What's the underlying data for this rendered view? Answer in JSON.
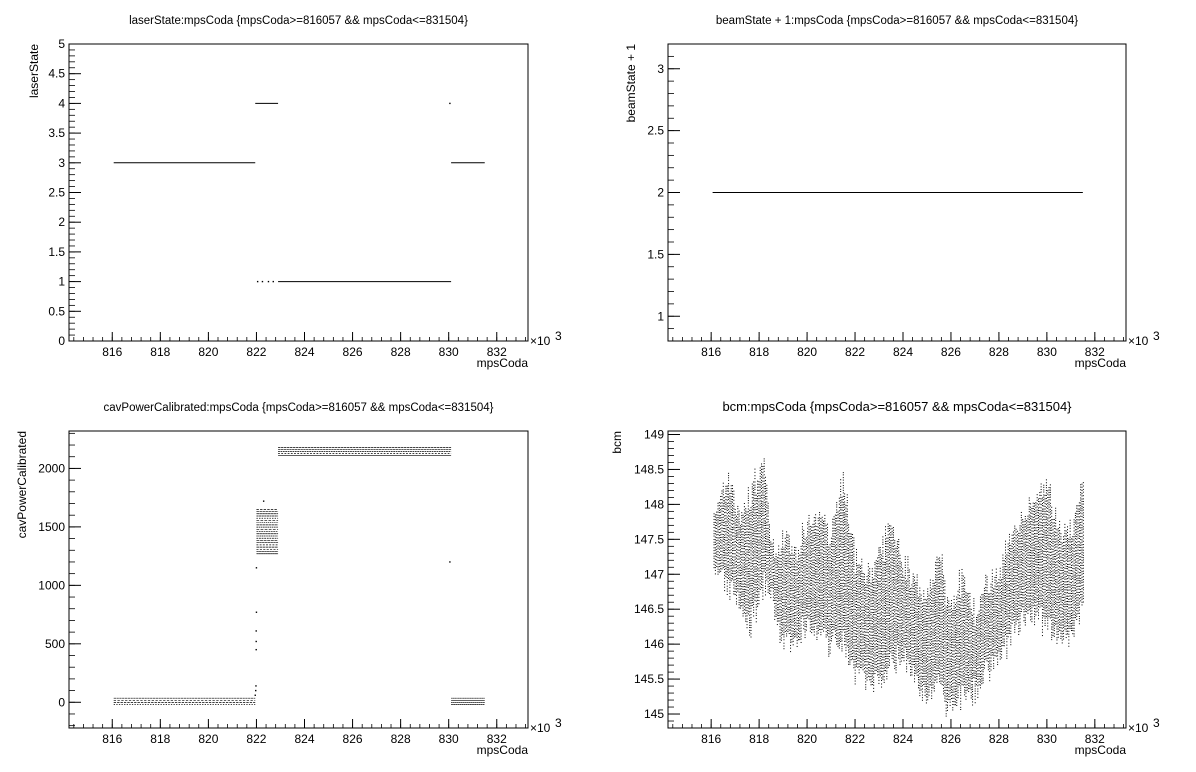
{
  "chart_data": [
    {
      "type": "scatter",
      "title": "laserState:mpsCoda {mpsCoda>=816057 && mpsCoda<=831504}",
      "xlabel": "mpsCoda",
      "ylabel": "laserState",
      "x_multiplier": "×10",
      "x_multiplier_exp": "3",
      "xlim": [
        814.2,
        833.3
      ],
      "ylim": [
        0,
        5
      ],
      "x_ticks": [
        816,
        818,
        820,
        822,
        824,
        826,
        828,
        830,
        832
      ],
      "x_tick_labels": [
        "816",
        "818",
        "820",
        "822",
        "824",
        "826",
        "828",
        "830",
        "832"
      ],
      "y_ticks": [
        0,
        0.5,
        1,
        1.5,
        2,
        2.5,
        3,
        3.5,
        4,
        4.5,
        5
      ],
      "y_tick_labels": [
        "0",
        "0.5",
        "1",
        "1.5",
        "2",
        "2.5",
        "3",
        "3.5",
        "4",
        "4.5",
        "5"
      ],
      "segments": [
        {
          "x0": 816.06,
          "x1": 821.95,
          "y": 3
        },
        {
          "x0": 821.95,
          "x1": 822.9,
          "y": 4
        },
        {
          "x0": 822.9,
          "x1": 830.1,
          "y": 1
        },
        {
          "x0": 830.1,
          "x1": 831.5,
          "y": 3
        }
      ],
      "points": [
        {
          "x": 822.05,
          "y": 1
        },
        {
          "x": 822.25,
          "y": 1
        },
        {
          "x": 822.5,
          "y": 1
        },
        {
          "x": 822.7,
          "y": 1
        },
        {
          "x": 830.05,
          "y": 4
        }
      ]
    },
    {
      "type": "scatter",
      "title": "beamState + 1:mpsCoda {mpsCoda>=816057 && mpsCoda<=831504}",
      "xlabel": "mpsCoda",
      "ylabel": "beamState + 1",
      "x_multiplier": "×10",
      "x_multiplier_exp": "3",
      "xlim": [
        814.2,
        833.3
      ],
      "ylim": [
        0.8,
        3.2
      ],
      "x_ticks": [
        816,
        818,
        820,
        822,
        824,
        826,
        828,
        830,
        832
      ],
      "x_tick_labels": [
        "816",
        "818",
        "820",
        "822",
        "824",
        "826",
        "828",
        "830",
        "832"
      ],
      "y_ticks": [
        1,
        1.5,
        2,
        2.5,
        3
      ],
      "y_tick_labels": [
        "1",
        "1.5",
        "2",
        "2.5",
        "3"
      ],
      "segments": [
        {
          "x0": 816.06,
          "x1": 831.5,
          "y": 2
        }
      ],
      "points": []
    },
    {
      "type": "scatter",
      "title": "cavPowerCalibrated:mpsCoda {mpsCoda>=816057 && mpsCoda<=831504}",
      "xlabel": "mpsCoda",
      "ylabel": "cavPowerCalibrated",
      "x_multiplier": "×10",
      "x_multiplier_exp": "3",
      "xlim": [
        814.2,
        833.3
      ],
      "ylim": [
        -220,
        2320
      ],
      "x_ticks": [
        816,
        818,
        820,
        822,
        824,
        826,
        828,
        830,
        832
      ],
      "x_tick_labels": [
        "816",
        "818",
        "820",
        "822",
        "824",
        "826",
        "828",
        "830",
        "832"
      ],
      "y_ticks": [
        0,
        500,
        1000,
        1500,
        2000
      ],
      "y_tick_labels": [
        "0",
        "500",
        "1000",
        "1500",
        "2000"
      ],
      "bands": [
        {
          "x0": 816.06,
          "x1": 821.95,
          "ymin": -20,
          "ymax": 35
        },
        {
          "x0": 822.0,
          "x1": 822.9,
          "ymin": 1270,
          "ymax": 1650
        },
        {
          "x0": 822.9,
          "x1": 830.1,
          "ymin": 2110,
          "ymax": 2180
        },
        {
          "x0": 830.1,
          "x1": 831.5,
          "ymin": -20,
          "ymax": 35
        }
      ],
      "points": [
        {
          "x": 821.95,
          "y": 60
        },
        {
          "x": 821.97,
          "y": 100
        },
        {
          "x": 821.98,
          "y": 140
        },
        {
          "x": 821.99,
          "y": 450
        },
        {
          "x": 821.99,
          "y": 520
        },
        {
          "x": 821.99,
          "y": 610
        },
        {
          "x": 822.0,
          "y": 770
        },
        {
          "x": 822.0,
          "y": 1150
        },
        {
          "x": 822.3,
          "y": 1720
        },
        {
          "x": 830.05,
          "y": 1200
        }
      ]
    },
    {
      "type": "scatter",
      "title": "bcm:mpsCoda {mpsCoda>=816057 && mpsCoda<=831504}",
      "xlabel": "mpsCoda",
      "ylabel": "bcm",
      "x_multiplier": "×10",
      "x_multiplier_exp": "3",
      "xlim": [
        814.2,
        833.3
      ],
      "ylim": [
        144.8,
        149.05
      ],
      "x_ticks": [
        816,
        818,
        820,
        822,
        824,
        826,
        828,
        830,
        832
      ],
      "x_tick_labels": [
        "816",
        "818",
        "820",
        "822",
        "824",
        "826",
        "828",
        "830",
        "832"
      ],
      "y_ticks": [
        145,
        145.5,
        146,
        146.5,
        147,
        147.5,
        148,
        148.5,
        149
      ],
      "y_tick_labels": [
        "145",
        "145.5",
        "146",
        "146.5",
        "147",
        "147.5",
        "148",
        "148.5",
        "149"
      ],
      "trend": [
        {
          "x": 816.1,
          "lo": 146.9,
          "hi": 147.9
        },
        {
          "x": 816.7,
          "lo": 146.8,
          "hi": 148.5
        },
        {
          "x": 817.2,
          "lo": 146.5,
          "hi": 148.0
        },
        {
          "x": 817.6,
          "lo": 146.1,
          "hi": 148.2
        },
        {
          "x": 818.2,
          "lo": 146.8,
          "hi": 148.75
        },
        {
          "x": 818.5,
          "lo": 146.6,
          "hi": 147.4
        },
        {
          "x": 819.0,
          "lo": 146.0,
          "hi": 147.6
        },
        {
          "x": 819.5,
          "lo": 145.9,
          "hi": 147.4
        },
        {
          "x": 820.0,
          "lo": 146.2,
          "hi": 147.8
        },
        {
          "x": 820.5,
          "lo": 146.1,
          "hi": 148.0
        },
        {
          "x": 821.0,
          "lo": 145.9,
          "hi": 147.6
        },
        {
          "x": 821.5,
          "lo": 146.0,
          "hi": 148.6
        },
        {
          "x": 822.0,
          "lo": 145.5,
          "hi": 147.3
        },
        {
          "x": 822.5,
          "lo": 145.4,
          "hi": 147.0
        },
        {
          "x": 823.0,
          "lo": 145.3,
          "hi": 147.4
        },
        {
          "x": 823.5,
          "lo": 145.6,
          "hi": 147.8
        },
        {
          "x": 824.0,
          "lo": 145.8,
          "hi": 147.3
        },
        {
          "x": 824.5,
          "lo": 145.4,
          "hi": 147.0
        },
        {
          "x": 825.0,
          "lo": 145.2,
          "hi": 146.8
        },
        {
          "x": 825.5,
          "lo": 145.3,
          "hi": 147.3
        },
        {
          "x": 826.0,
          "lo": 145.0,
          "hi": 146.6
        },
        {
          "x": 826.5,
          "lo": 145.2,
          "hi": 147.1
        },
        {
          "x": 827.0,
          "lo": 145.2,
          "hi": 146.5
        },
        {
          "x": 827.5,
          "lo": 145.6,
          "hi": 147.0
        },
        {
          "x": 828.0,
          "lo": 145.8,
          "hi": 147.2
        },
        {
          "x": 828.5,
          "lo": 146.0,
          "hi": 147.6
        },
        {
          "x": 829.0,
          "lo": 146.3,
          "hi": 147.9
        },
        {
          "x": 829.5,
          "lo": 146.4,
          "hi": 148.2
        },
        {
          "x": 830.0,
          "lo": 146.2,
          "hi": 148.5
        },
        {
          "x": 830.5,
          "lo": 146.0,
          "hi": 147.6
        },
        {
          "x": 831.0,
          "lo": 146.1,
          "hi": 147.8
        },
        {
          "x": 831.5,
          "lo": 146.5,
          "hi": 148.4
        }
      ]
    }
  ]
}
